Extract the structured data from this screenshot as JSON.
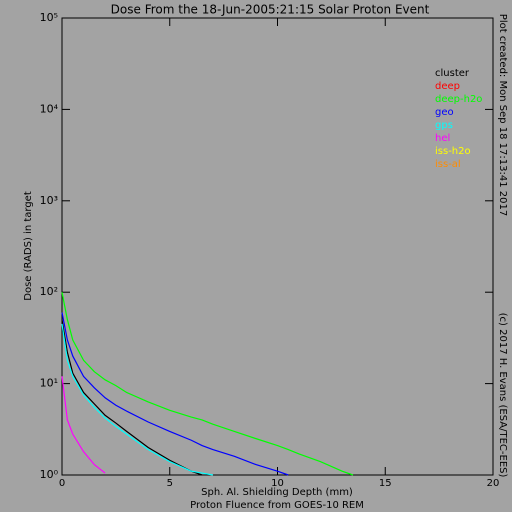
{
  "chart_data": {
    "type": "line",
    "title": "Dose From the 18-Jun-2005:21:15 Solar Proton Event",
    "x_label": "Sph. Al. Shielding Depth (mm)",
    "subtitle": "Proton Fluence from GOES-10 REM",
    "y_label": "Dose (RADS) in target",
    "annotations": [
      "Plot created: Mon Sep 18 17:13:41 2017",
      "(c) 2017 H. Evans (ESA/TEC-EES)"
    ],
    "log_y": true,
    "xlim": [
      0,
      20
    ],
    "xticks": [
      0,
      5,
      10,
      15,
      20
    ],
    "ylim": [
      1,
      100000
    ],
    "yticks": [
      {
        "value": 1,
        "label": "10⁰"
      },
      {
        "value": 10,
        "label": "10¹"
      },
      {
        "value": 100,
        "label": "10²"
      },
      {
        "value": 1000,
        "label": "10³"
      },
      {
        "value": 10000,
        "label": "10⁴"
      },
      {
        "value": 100000,
        "label": "10⁵"
      }
    ],
    "legend": "upper right",
    "x": [
      0,
      0.25,
      0.5,
      1,
      1.5,
      2,
      2.5,
      3,
      4,
      5,
      6,
      6.5,
      7,
      8,
      9,
      10,
      10.5,
      11,
      12,
      13,
      13.5
    ],
    "series": [
      {
        "name": "cluster",
        "color": "#000000",
        "values": [
          50,
          22,
          13,
          8,
          6,
          4.5,
          3.7,
          3,
          2,
          1.45,
          1.1,
          1.0,
          null,
          null,
          null,
          null,
          null,
          null,
          null,
          null,
          null
        ]
      },
      {
        "name": "deep",
        "color": "#ff0000",
        "values": [
          null,
          null,
          null,
          null,
          null,
          null,
          null,
          null,
          null,
          null,
          null,
          null,
          null,
          null,
          null,
          null,
          null,
          null,
          null,
          null,
          null
        ]
      },
      {
        "name": "deep-h2o",
        "color": "#00ff00",
        "values": [
          100,
          50,
          30,
          18,
          13.5,
          11,
          9.5,
          8,
          6.3,
          5.1,
          4.3,
          4.0,
          3.6,
          3.0,
          2.5,
          2.1,
          1.9,
          1.7,
          1.4,
          1.1,
          1.0
        ]
      },
      {
        "name": "geo",
        "color": "#0000ff",
        "values": [
          60,
          30,
          20,
          12,
          9,
          7,
          5.8,
          5,
          3.8,
          3.0,
          2.4,
          2.1,
          1.9,
          1.6,
          1.3,
          1.1,
          1.0,
          null,
          null,
          null,
          null
        ]
      },
      {
        "name": "gps",
        "color": "#00ffff",
        "values": [
          45,
          18,
          12,
          7.5,
          5.5,
          4.2,
          3.4,
          2.8,
          1.9,
          1.4,
          1.1,
          1.05,
          1.0,
          null,
          null,
          null,
          null,
          null,
          null,
          null,
          null
        ]
      },
      {
        "name": "hel",
        "color": "#ff00ff",
        "values": [
          12,
          4,
          2.8,
          1.8,
          1.3,
          1.05,
          null,
          null,
          null,
          null,
          null,
          null,
          null,
          null,
          null,
          null,
          null,
          null,
          null,
          null,
          null
        ]
      },
      {
        "name": "iss-h2o",
        "color": "#ffff00",
        "values": [
          null,
          null,
          null,
          null,
          null,
          null,
          null,
          null,
          null,
          null,
          null,
          null,
          null,
          null,
          null,
          null,
          null,
          null,
          null,
          null,
          null
        ]
      },
      {
        "name": "iss-al",
        "color": "#ff8c00",
        "values": [
          null,
          null,
          null,
          null,
          null,
          null,
          null,
          null,
          null,
          null,
          null,
          null,
          null,
          null,
          null,
          null,
          null,
          null,
          null,
          null,
          null
        ]
      }
    ]
  }
}
